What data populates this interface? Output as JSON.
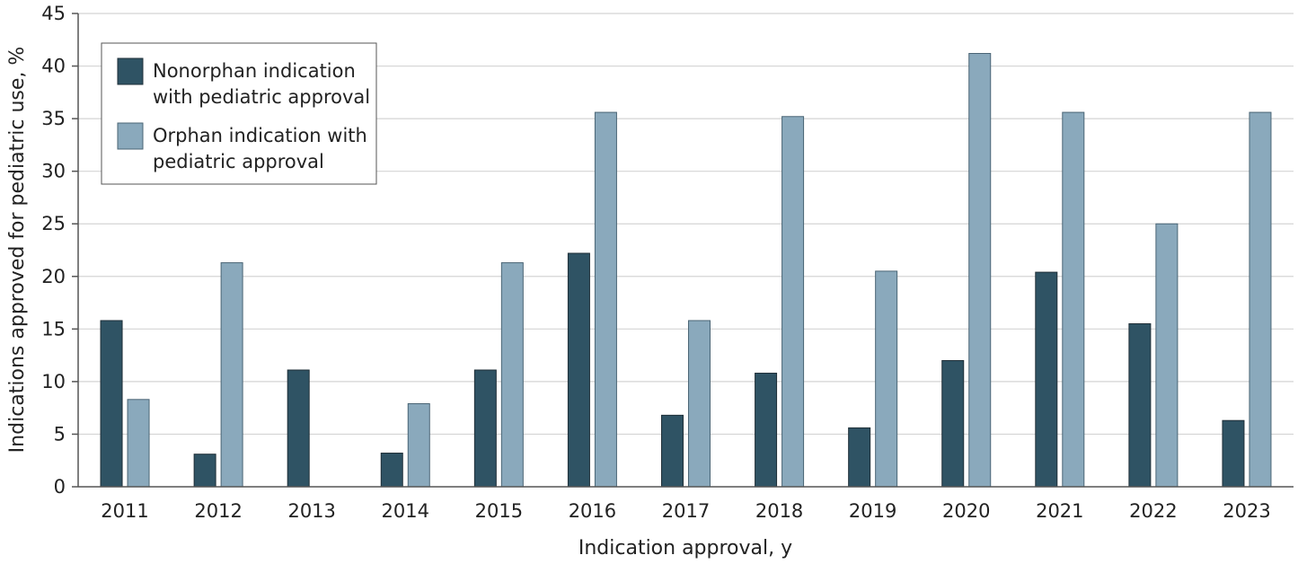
{
  "chart_data": {
    "type": "bar",
    "xlabel": "Indication approval, y",
    "ylabel": "Indications approved for pediatric use, %",
    "ylim": [
      0,
      45
    ],
    "yticks": [
      0,
      5,
      10,
      15,
      20,
      25,
      30,
      35,
      40,
      45
    ],
    "grid": true,
    "legend_position": "top-left",
    "categories": [
      "2011",
      "2012",
      "2013",
      "2014",
      "2015",
      "2016",
      "2017",
      "2018",
      "2019",
      "2020",
      "2021",
      "2022",
      "2023"
    ],
    "series": [
      {
        "name": "Nonorphan indication with pediatric approval",
        "legend_lines": [
          "Nonorphan indication",
          "with pediatric approval"
        ],
        "color": "#2f5364",
        "values": [
          15.8,
          3.1,
          11.1,
          3.2,
          11.1,
          22.2,
          6.8,
          10.8,
          5.6,
          12.0,
          20.4,
          15.5,
          6.3
        ]
      },
      {
        "name": "Orphan indication with pediatric approval",
        "legend_lines": [
          "Orphan indication with",
          "pediatric approval"
        ],
        "color": "#8aa9bc",
        "values": [
          8.3,
          21.3,
          0,
          7.9,
          21.3,
          35.6,
          15.8,
          35.2,
          20.5,
          41.2,
          35.6,
          25.0,
          35.6
        ]
      }
    ]
  }
}
